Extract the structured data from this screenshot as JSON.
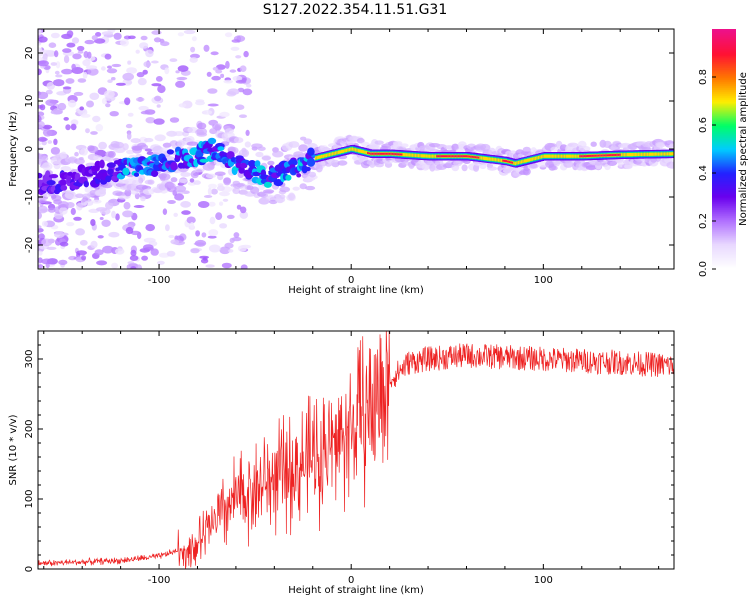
{
  "title": "S127.2022.354.11.51.G31",
  "colors": {
    "snr_line": "#ee2222",
    "background": "#ffffff",
    "colormap": [
      "#ffffff",
      "#e8d8ff",
      "#b070ff",
      "#6a00ee",
      "#2222ff",
      "#00ccff",
      "#00ff66",
      "#ffee00",
      "#ff7700",
      "#ff1133",
      "#ee1188"
    ]
  },
  "chart_data": [
    {
      "type": "heatmap",
      "xlabel": "Height of straight line (km)",
      "ylabel": "Frequency (Hz)",
      "xlim": [
        -163,
        168
      ],
      "ylim": [
        -25,
        25
      ],
      "x_ticks": [
        -100,
        0,
        100
      ],
      "y_ticks": [
        -20,
        -10,
        0,
        10,
        20
      ],
      "colorbar": {
        "label": "Normalized spectral amplitude",
        "range": [
          0,
          1
        ],
        "ticks": [
          0.0,
          0.2,
          0.4,
          0.6,
          0.8
        ]
      },
      "ridge": {
        "x": [
          -150,
          -130,
          -110,
          -100,
          -90,
          -80,
          -70,
          -60,
          -50,
          -40,
          -30,
          -20,
          -10,
          0,
          10,
          20,
          40,
          60,
          80,
          85,
          100,
          120,
          140,
          168
        ],
        "y": [
          -7,
          -5,
          -4,
          -3,
          -2,
          -1,
          0,
          -3,
          -5,
          -6,
          -4,
          -2,
          -1,
          0,
          -1,
          -1,
          -1.5,
          -1.5,
          -2.5,
          -3,
          -1.5,
          -1.5,
          -1.2,
          -1
        ]
      },
      "grid": false
    },
    {
      "type": "line",
      "xlabel": "Height of straight line (km)",
      "ylabel": "SNR (10 * v/v)",
      "xlim": [
        -163,
        168
      ],
      "ylim": [
        0,
        340
      ],
      "x_ticks": [
        -100,
        0,
        100
      ],
      "y_ticks": [
        0,
        100,
        200,
        300
      ],
      "trend": {
        "x": [
          -163,
          -140,
          -120,
          -100,
          -80,
          -70,
          -60,
          -50,
          -40,
          -30,
          -20,
          -10,
          0,
          10,
          20,
          30,
          40,
          60,
          100,
          140,
          168
        ],
        "y": [
          8,
          10,
          12,
          18,
          35,
          70,
          100,
          115,
          130,
          140,
          160,
          175,
          200,
          230,
          270,
          295,
          300,
          305,
          300,
          295,
          290
        ]
      },
      "grid": false
    }
  ]
}
